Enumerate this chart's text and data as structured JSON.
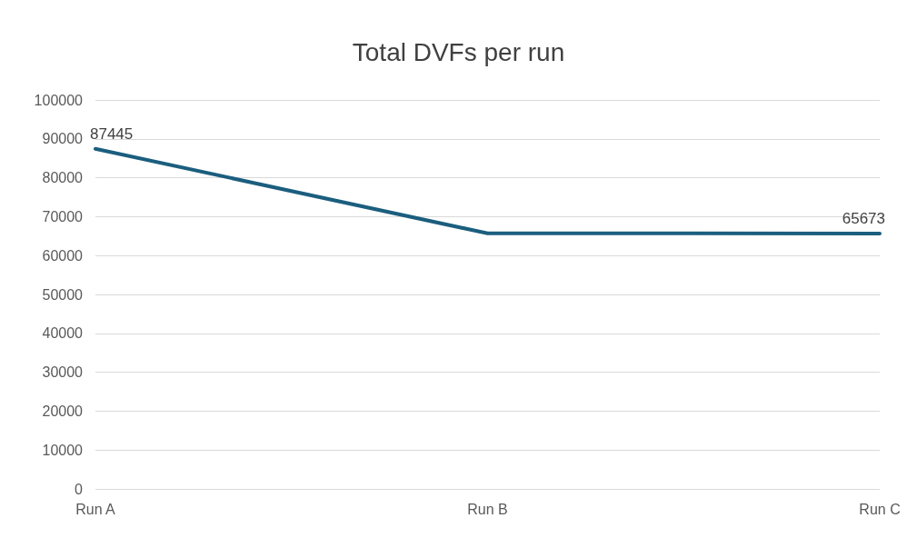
{
  "chart_data": {
    "type": "line",
    "title": "Total DVFs per run",
    "categories": [
      "Run A",
      "Run B",
      "Run C"
    ],
    "series": [
      {
        "color": "#1b5e7e",
        "values": [
          87445,
          65700,
          65673
        ],
        "value_labels": [
          "87445",
          null,
          "65673"
        ]
      }
    ],
    "ylim": [
      0,
      100000
    ],
    "yticks": [
      0,
      10000,
      20000,
      30000,
      40000,
      50000,
      60000,
      70000,
      80000,
      90000,
      100000
    ],
    "grid": "y",
    "marker": "none",
    "line_style": "solid"
  }
}
